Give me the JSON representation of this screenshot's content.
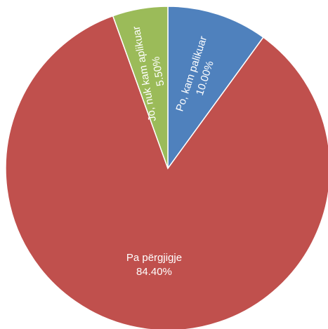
{
  "chart_data": {
    "type": "pie",
    "categories": [
      "Po, kam palikuar",
      "Pa përgjigje",
      "Jo, nuk kam aplikuar"
    ],
    "values": [
      10.0,
      84.4,
      5.5
    ],
    "value_labels": [
      "10.00%",
      "84.40%",
      "5.50%"
    ],
    "colors": [
      "#4f81bd",
      "#c0504d",
      "#9bbb59"
    ]
  }
}
